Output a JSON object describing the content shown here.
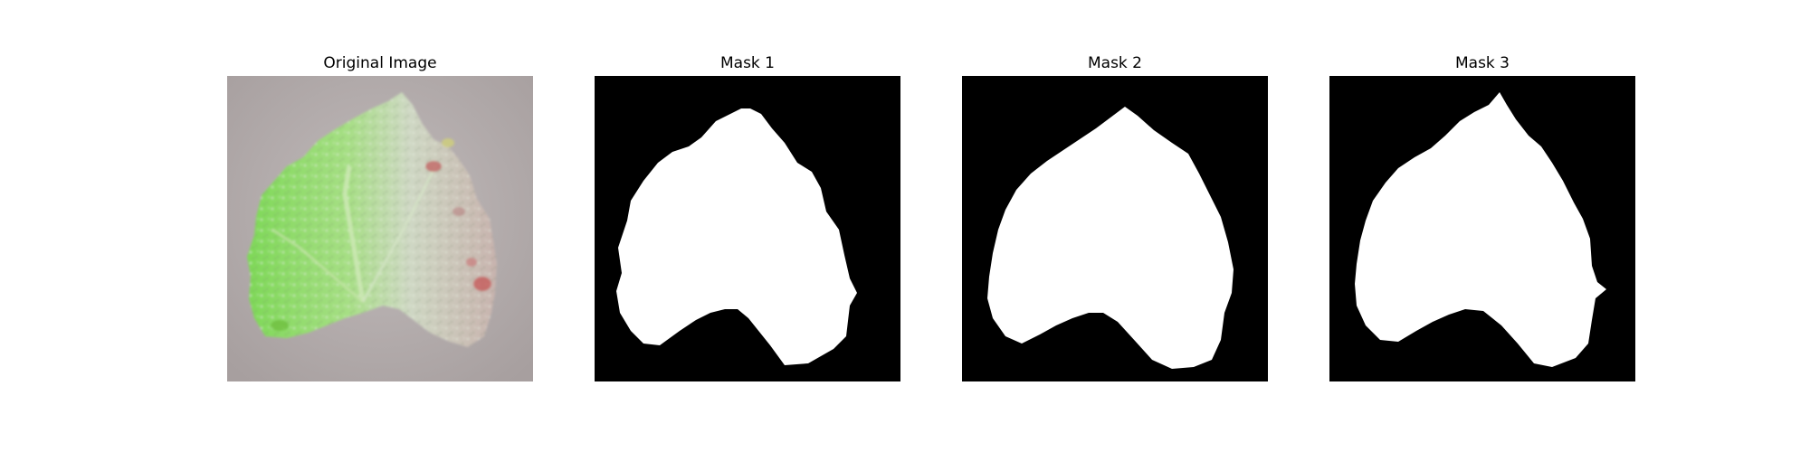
{
  "figure": {
    "panels": [
      {
        "title": "Original Image"
      },
      {
        "title": "Mask 1"
      },
      {
        "title": "Mask 2"
      },
      {
        "title": "Mask 3"
      }
    ]
  },
  "colors": {
    "background": "#ffffff",
    "mask_background": "#000000",
    "mask_foreground": "#ffffff",
    "photo_surface": "#b6aeae",
    "leaf_green": "#8fd86a",
    "leaf_light": "#d7e8c8",
    "lesion_red": "#c96c6c"
  },
  "icons": []
}
